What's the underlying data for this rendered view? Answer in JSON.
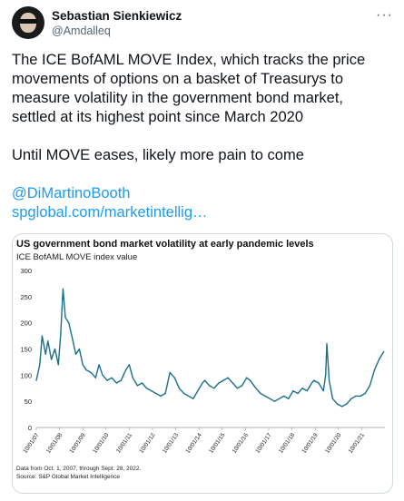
{
  "author": {
    "name": "Sebastian Sienkiewicz",
    "handle": "@Amdalleq"
  },
  "tweet": {
    "lines": [
      "The ICE BofAML MOVE Index, which tracks the price",
      "movements of options on a basket of Treasurys to",
      "measure volatility in the government bond market,",
      "settled at its highest point since March 2020"
    ],
    "line2": "Until MOVE eases, likely more pain to come",
    "mention": "@DiMartinoBooth",
    "url": "spglobal.com/marketintellig…"
  },
  "chart_data": {
    "type": "line",
    "title": "US government bond market volatility at early pandemic levels",
    "subtitle": "ICE BofAML MOVE index value",
    "footnote": "Data from Oct. 1, 2007, through Sept. 28, 2022.",
    "source": "Source: S&P Global Market Intelligence",
    "ylim": [
      0,
      300
    ],
    "yticks": [
      0,
      50,
      100,
      150,
      200,
      250,
      300
    ],
    "xticks": [
      "10/01/07",
      "10/01/08",
      "10/01/09",
      "10/01/10",
      "10/01/11",
      "10/01/12",
      "10/01/13",
      "10/01/14",
      "10/01/15",
      "10/01/16",
      "10/01/17",
      "10/01/18",
      "10/01/19",
      "10/01/20",
      "10/01/21"
    ],
    "color": "#1a6f8a",
    "series": [
      {
        "x": [
          2007.75,
          2007.9,
          2008.0,
          2008.15,
          2008.25,
          2008.4,
          2008.55,
          2008.7,
          2008.8,
          2008.9,
          2009.0,
          2009.15,
          2009.3,
          2009.45,
          2009.6,
          2009.75,
          2009.9,
          2010.1,
          2010.3,
          2010.45,
          2010.6,
          2010.8,
          2011.0,
          2011.2,
          2011.4,
          2011.6,
          2011.75,
          2011.9,
          2012.1,
          2012.3,
          2012.5,
          2012.7,
          2012.9,
          2013.1,
          2013.3,
          2013.5,
          2013.7,
          2013.9,
          2014.1,
          2014.3,
          2014.5,
          2014.7,
          2014.9,
          2015.0,
          2015.2,
          2015.4,
          2015.6,
          2015.8,
          2016.0,
          2016.2,
          2016.4,
          2016.6,
          2016.8,
          2016.95,
          2017.2,
          2017.4,
          2017.6,
          2017.8,
          2018.0,
          2018.2,
          2018.4,
          2018.6,
          2018.8,
          2019.0,
          2019.2,
          2019.4,
          2019.6,
          2019.7,
          2019.9,
          2020.1,
          2020.2,
          2020.25,
          2020.35,
          2020.5,
          2020.7,
          2020.9,
          2021.1,
          2021.3,
          2021.5,
          2021.7,
          2021.9,
          2022.1,
          2022.3,
          2022.5,
          2022.7
        ],
        "y": [
          90,
          120,
          175,
          140,
          165,
          130,
          150,
          120,
          180,
          265,
          210,
          200,
          170,
          140,
          150,
          120,
          110,
          105,
          95,
          120,
          100,
          90,
          95,
          85,
          90,
          110,
          120,
          95,
          80,
          85,
          75,
          70,
          65,
          60,
          65,
          105,
          95,
          75,
          65,
          60,
          55,
          70,
          85,
          90,
          80,
          75,
          85,
          90,
          95,
          85,
          75,
          80,
          95,
          90,
          75,
          65,
          60,
          55,
          50,
          55,
          60,
          55,
          70,
          65,
          75,
          70,
          85,
          90,
          85,
          70,
          100,
          160,
          90,
          55,
          45,
          40,
          45,
          55,
          60,
          60,
          65,
          80,
          110,
          130,
          145
        ]
      }
    ]
  }
}
